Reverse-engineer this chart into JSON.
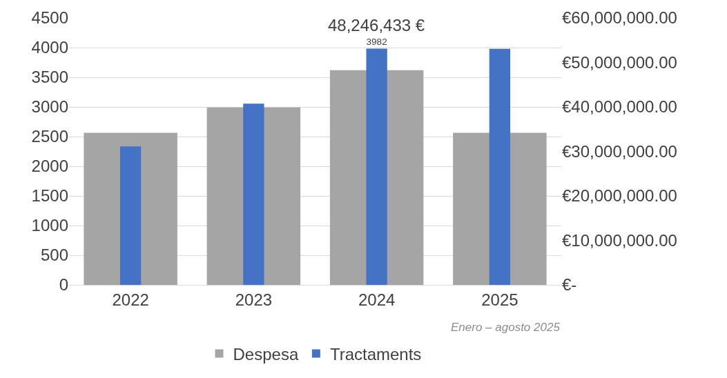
{
  "chart_data": {
    "type": "bar",
    "categories": [
      "2022",
      "2023",
      "2024",
      "2025"
    ],
    "series": [
      {
        "name": "Despesa",
        "color": "#a5a5a5",
        "axis": "y2",
        "values": [
          34200000,
          39900000,
          48246433,
          34200000
        ],
        "value_labels": [
          null,
          null,
          "48,246,433 €",
          null
        ]
      },
      {
        "name": "Tractaments",
        "color": "#4472c4",
        "values": [
          2333,
          3056,
          3982,
          3980
        ],
        "value_labels": [
          null,
          null,
          "3982",
          null
        ]
      }
    ],
    "ylim": [
      0,
      4500
    ],
    "yticks": [
      0,
      500,
      1000,
      1500,
      2000,
      2500,
      3000,
      3500,
      4000,
      4500
    ],
    "y2lim": [
      0,
      60000000
    ],
    "y2ticks": [
      {
        "value": 0,
        "label": "€-"
      },
      {
        "value": 10000000,
        "label": "€10,000,000.00"
      },
      {
        "value": 20000000,
        "label": "€20,000,000.00"
      },
      {
        "value": 30000000,
        "label": "€30,000,000.00"
      },
      {
        "value": 40000000,
        "label": "€40,000,000.00"
      },
      {
        "value": 50000000,
        "label": "€50,000,000.00"
      },
      {
        "value": 60000000,
        "label": "€60,000,000.00"
      }
    ],
    "annotations": [
      "Enero – agosto 2025"
    ],
    "grid": "y",
    "legend": "bottom"
  }
}
